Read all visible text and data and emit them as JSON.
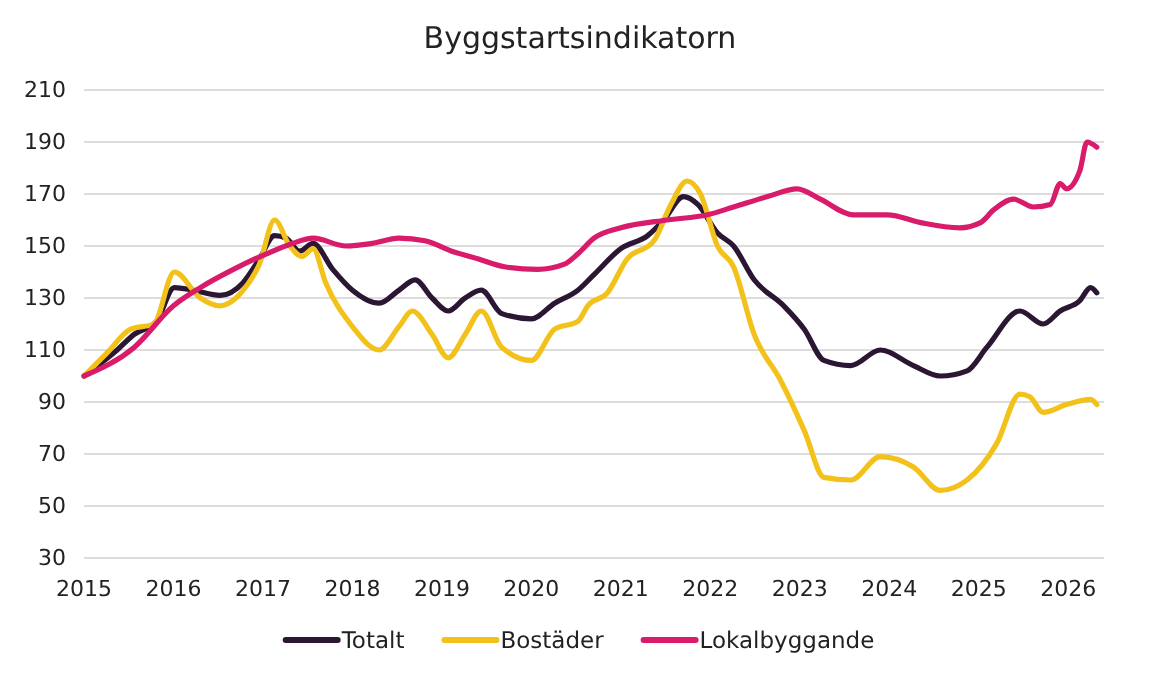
{
  "chart_data": {
    "type": "line",
    "title": "Byggstartsindikatorn",
    "xlim": [
      2015,
      2026.4
    ],
    "xticks": [
      2015,
      2016,
      2017,
      2018,
      2019,
      2020,
      2021,
      2022,
      2023,
      2024,
      2025,
      2026
    ],
    "ylim": [
      30,
      210
    ],
    "yticks": [
      30,
      50,
      70,
      90,
      110,
      130,
      150,
      170,
      190,
      210
    ],
    "grid": "y",
    "legend": "bottom",
    "marker": "none",
    "line_style": "solid",
    "series": [
      {
        "name": "Totalt",
        "color": "#2b1633",
        "x": [
          2015,
          2015.37,
          2015.56,
          2015.81,
          2016.01,
          2016.22,
          2016.52,
          2016.78,
          2016.96,
          2017.13,
          2017.26,
          2017.41,
          2017.56,
          2017.78,
          2018,
          2018.3,
          2018.52,
          2018.7,
          2018.89,
          2019.07,
          2019.26,
          2019.44,
          2019.67,
          2020,
          2020.26,
          2020.52,
          2020.7,
          2021,
          2021.3,
          2021.48,
          2021.7,
          2021.86,
          2022.08,
          2022.26,
          2022.49,
          2022.82,
          2023.05,
          2023.27,
          2023.57,
          2023.9,
          2024.27,
          2024.57,
          2024.87,
          2025.09,
          2025.46,
          2025.72,
          2025.91,
          2026.13,
          2026.25,
          2026.32
        ],
        "values": [
          100,
          110,
          116,
          121,
          134,
          133,
          131,
          136,
          145,
          154,
          153,
          148,
          151,
          141,
          133,
          128,
          133,
          137,
          130,
          125,
          130,
          133,
          124,
          122,
          128,
          133,
          139,
          149,
          154,
          160,
          169,
          166,
          155,
          150,
          137,
          127,
          118,
          106,
          104,
          110,
          104,
          100,
          102,
          111,
          125,
          120,
          125,
          129,
          134,
          132
        ]
      },
      {
        "name": "Bostäder",
        "color": "#f2c21b",
        "x": [
          2015,
          2015.26,
          2015.52,
          2015.78,
          2016.01,
          2016.3,
          2016.52,
          2016.78,
          2016.96,
          2017.13,
          2017.3,
          2017.44,
          2017.56,
          2017.7,
          2018,
          2018.3,
          2018.52,
          2018.67,
          2018.89,
          2019.07,
          2019.26,
          2019.44,
          2019.67,
          2020,
          2020.26,
          2020.52,
          2020.63,
          2020.85,
          2021.07,
          2021.37,
          2021.56,
          2021.74,
          2021.89,
          2022.08,
          2022.26,
          2022.49,
          2022.79,
          2023.05,
          2023.27,
          2023.57,
          2023.9,
          2024.27,
          2024.57,
          2024.87,
          2025.2,
          2025.46,
          2025.57,
          2025.72,
          2025.98,
          2026.25,
          2026.32
        ],
        "values": [
          100,
          109,
          118,
          120,
          140,
          130,
          127,
          133,
          143,
          160,
          150,
          146,
          149,
          136,
          119,
          110,
          119,
          125,
          116,
          107,
          116,
          125,
          111,
          106,
          118,
          121,
          127,
          132,
          145,
          152,
          166,
          175,
          170,
          150,
          142,
          116,
          98,
          79,
          61,
          60,
          69,
          65,
          56,
          60,
          74,
          93,
          92,
          86,
          89,
          91,
          89
        ]
      },
      {
        "name": "Lokalbyggande",
        "color": "#d81b6a",
        "x": [
          2015,
          2015.56,
          2016,
          2016.3,
          2016.67,
          2017.04,
          2017.33,
          2017.56,
          2017.93,
          2018.22,
          2018.52,
          2018.81,
          2019.11,
          2019.41,
          2019.7,
          2020.07,
          2020.37,
          2020.52,
          2020.7,
          2021,
          2021.52,
          2021.97,
          2022.26,
          2022.64,
          2022.97,
          2023.23,
          2023.6,
          2023.98,
          2024.35,
          2024.79,
          2025.02,
          2025.17,
          2025.39,
          2025.61,
          2025.8,
          2025.91,
          2025.98,
          2026.13,
          2026.21,
          2026.32
        ],
        "values": [
          100,
          111,
          127,
          134,
          141,
          147,
          151,
          153,
          150,
          151,
          153,
          152,
          148,
          145,
          142,
          141,
          143,
          147,
          153,
          157,
          160,
          162,
          165,
          169,
          172,
          168,
          162,
          162,
          159,
          157,
          159,
          164,
          168,
          165,
          166,
          174,
          172,
          179,
          190,
          188
        ]
      }
    ]
  }
}
